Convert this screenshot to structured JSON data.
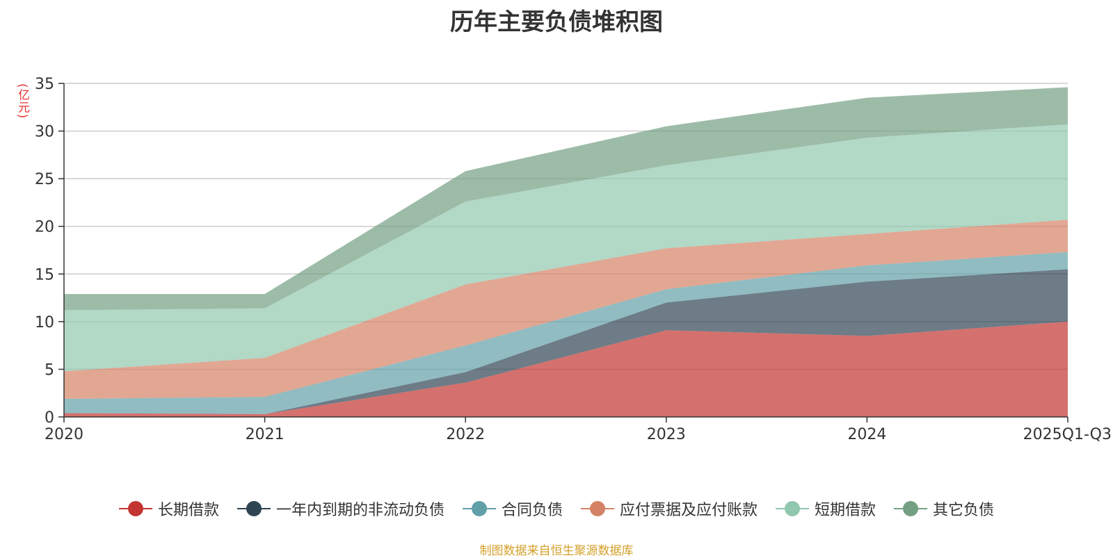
{
  "chart_data": {
    "type": "area",
    "stacked": true,
    "title": "历年主要负债堆积图",
    "ylabel": "(亿元)",
    "xlabel": "",
    "ylim": [
      0,
      35
    ],
    "yticks": [
      0,
      5,
      10,
      15,
      20,
      25,
      30,
      35
    ],
    "grid": true,
    "legend_position": "bottom",
    "categories": [
      "2020",
      "2021",
      "2022",
      "2023",
      "2024",
      "2025Q1-Q3"
    ],
    "series": [
      {
        "name": "长期借款",
        "color": "#c23531",
        "values": [
          0.4,
          0.3,
          3.6,
          9.1,
          8.5,
          10.0
        ]
      },
      {
        "name": "一年内到期的非流动负债",
        "color": "#2f4554",
        "values": [
          0.0,
          0.0,
          1.1,
          2.9,
          5.7,
          5.5
        ]
      },
      {
        "name": "合同负债",
        "color": "#61a0a8",
        "values": [
          1.5,
          1.8,
          2.8,
          1.4,
          1.7,
          1.8
        ]
      },
      {
        "name": "应付票据及应付账款",
        "color": "#d48265",
        "values": [
          2.9,
          4.1,
          6.4,
          4.3,
          3.3,
          3.4
        ]
      },
      {
        "name": "短期借款",
        "color": "#91c7ae",
        "values": [
          6.4,
          5.2,
          8.7,
          8.7,
          10.1,
          10.0
        ]
      },
      {
        "name": "其它负债",
        "color": "#749f83",
        "values": [
          1.7,
          1.5,
          3.2,
          4.1,
          4.2,
          3.9
        ]
      }
    ]
  },
  "footer": {
    "source": "制图数据来自恒生聚源数据库"
  }
}
